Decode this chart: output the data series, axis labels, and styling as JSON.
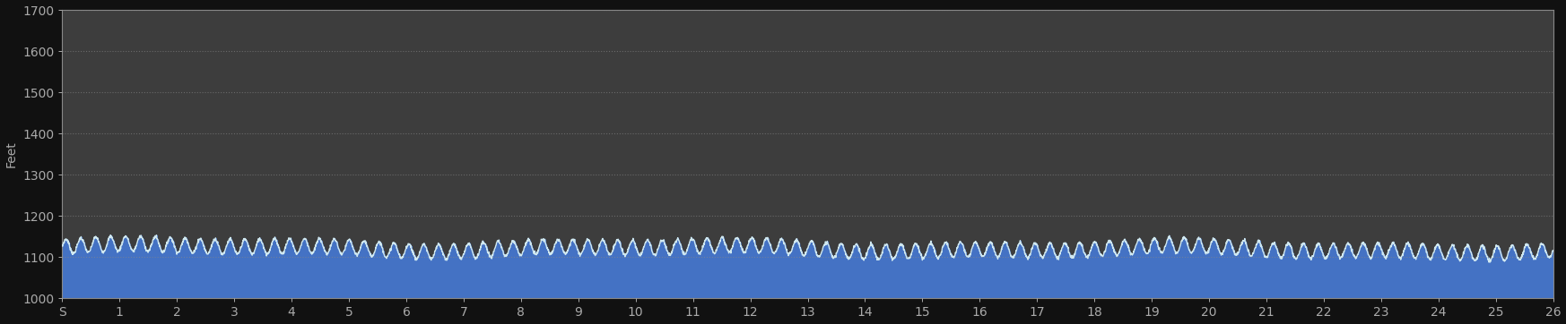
{
  "background_color": "#111111",
  "plot_bg_color": "#3d3d3d",
  "ylabel": "Feet",
  "ylim": [
    1000,
    1700
  ],
  "yticks": [
    1000,
    1100,
    1200,
    1300,
    1400,
    1500,
    1600,
    1700
  ],
  "xlabel_labels": [
    "S",
    "1",
    "2",
    "3",
    "4",
    "5",
    "6",
    "7",
    "8",
    "9",
    "10",
    "11",
    "12",
    "13",
    "14",
    "15",
    "16",
    "17",
    "18",
    "19",
    "20",
    "21",
    "22",
    "23",
    "24",
    "25",
    "26"
  ],
  "fill_color": "#4472c4",
  "line_color": "#d0e8f0",
  "grid_color": "#888888",
  "tick_color": "#aaaaaa",
  "label_color": "#aaaaaa",
  "base_elevation": 1000,
  "mean_elevation": 1125,
  "amplitude": 18,
  "num_points": 5000,
  "line_width": 1.0,
  "num_peaks": 100
}
